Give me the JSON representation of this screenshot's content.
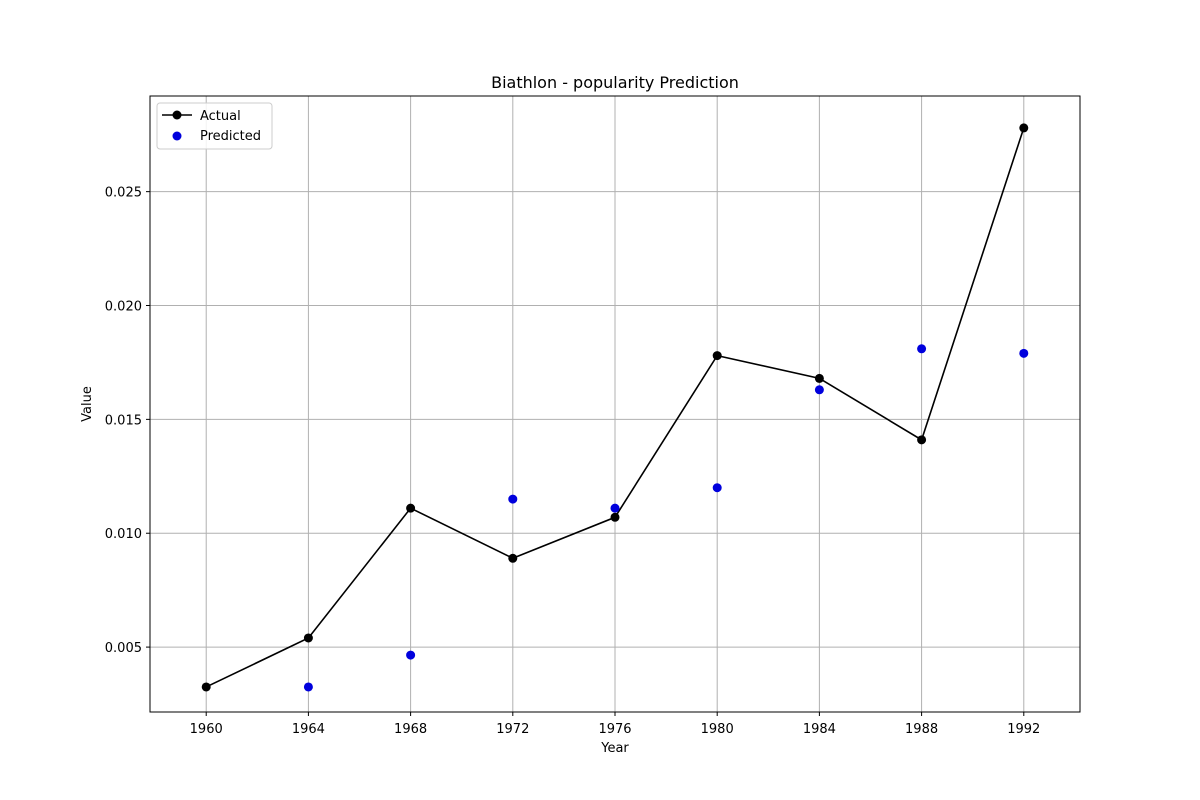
{
  "chart_data": {
    "type": "line",
    "title": "Biathlon - popularity Prediction",
    "xlabel": "Year",
    "ylabel": "Value",
    "xlim": [
      1957.8,
      1994.2
    ],
    "ylim": [
      0.00215,
      0.0292
    ],
    "x_ticks": [
      1960,
      1964,
      1968,
      1972,
      1976,
      1980,
      1984,
      1988,
      1992
    ],
    "x_tick_labels": [
      "1960",
      "1964",
      "1968",
      "1972",
      "1976",
      "1980",
      "1984",
      "1988",
      "1992"
    ],
    "y_ticks": [
      0.005,
      0.01,
      0.015,
      0.02,
      0.025
    ],
    "y_tick_labels": [
      "0.005",
      "0.010",
      "0.015",
      "0.020",
      "0.025"
    ],
    "grid": true,
    "legend_position": "top-left",
    "series": [
      {
        "name": "Actual",
        "kind": "line-with-markers",
        "color": "#000000",
        "x": [
          1960,
          1964,
          1968,
          1972,
          1976,
          1980,
          1984,
          1988,
          1992
        ],
        "y": [
          0.00325,
          0.0054,
          0.0111,
          0.0089,
          0.0107,
          0.0178,
          0.0168,
          0.0141,
          0.0278
        ]
      },
      {
        "name": "Predicted",
        "kind": "scatter",
        "color": "#0000dd",
        "x": [
          1964,
          1968,
          1972,
          1976,
          1980,
          1984,
          1988,
          1992
        ],
        "y": [
          0.00325,
          0.00465,
          0.0115,
          0.0111,
          0.012,
          0.0163,
          0.0181,
          0.0179
        ]
      }
    ]
  }
}
